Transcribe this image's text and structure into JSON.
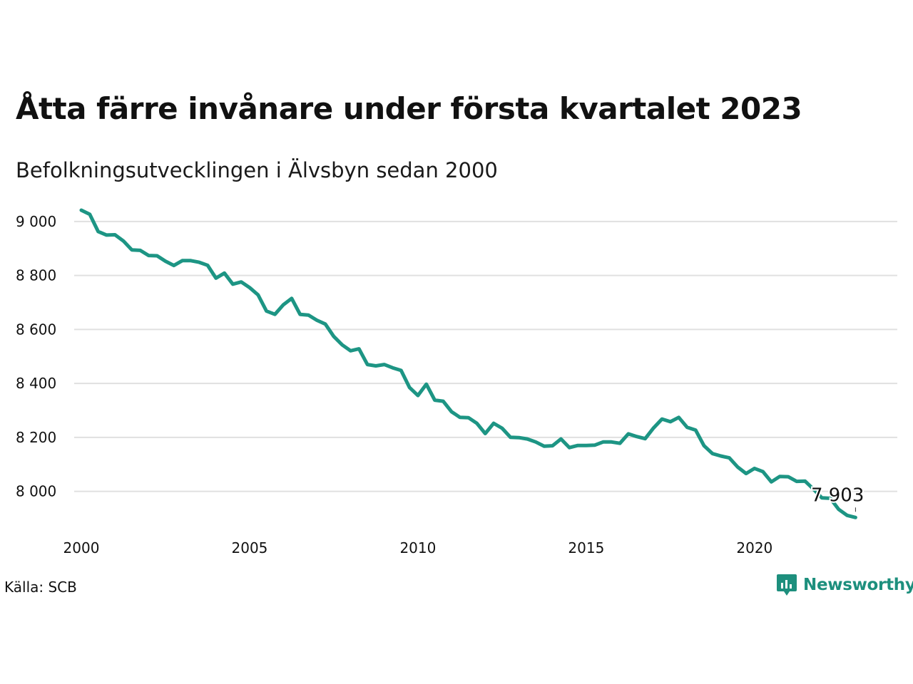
{
  "title": "Åtta färre invånare under första kvartalet 2023",
  "subtitle": "Befolkningsutvecklingen i Älvsbyn sedan 2000",
  "source": "Källa: SCB",
  "brand": {
    "name": "Newsworthy",
    "icon": "chart-bubble-icon",
    "color": "#1d8f7d"
  },
  "chart_data": {
    "type": "line",
    "ylim": [
      7880,
      9050
    ],
    "xlim": [
      2000.0,
      2023.5
    ],
    "yticks": [
      8000,
      8200,
      8400,
      8600,
      8800,
      9000
    ],
    "ytick_labels": [
      "8 000",
      "8 200",
      "8 400",
      "8 600",
      "8 800",
      "9 000"
    ],
    "xticks": [
      2000,
      2005,
      2010,
      2015,
      2020
    ],
    "xtick_labels": [
      "2000",
      "2005",
      "2010",
      "2015",
      "2020"
    ],
    "grid": true,
    "line_color": "#1d9584",
    "last_label": "7 903",
    "series": [
      {
        "x": [
          "2000Q1",
          "2000Q2",
          "2000Q3",
          "2000Q4",
          "2001Q1",
          "2001Q2",
          "2001Q3",
          "2001Q4",
          "2002Q1",
          "2002Q2",
          "2002Q3",
          "2002Q4",
          "2003Q1",
          "2003Q2",
          "2003Q3",
          "2003Q4",
          "2004Q1",
          "2004Q2",
          "2004Q3",
          "2004Q4",
          "2005Q1",
          "2005Q2",
          "2005Q3",
          "2005Q4",
          "2006Q1",
          "2006Q2",
          "2006Q3",
          "2006Q4",
          "2007Q1",
          "2007Q2",
          "2007Q3",
          "2007Q4",
          "2008Q1",
          "2008Q2",
          "2008Q3",
          "2008Q4",
          "2009Q1",
          "2009Q2",
          "2009Q3",
          "2009Q4",
          "2010Q1",
          "2010Q2",
          "2010Q3",
          "2010Q4",
          "2011Q1",
          "2011Q2",
          "2011Q3",
          "2011Q4",
          "2012Q1",
          "2012Q2",
          "2012Q3",
          "2012Q4",
          "2013Q1",
          "2013Q2",
          "2013Q3",
          "2013Q4",
          "2014Q1",
          "2014Q2",
          "2014Q3",
          "2014Q4",
          "2015Q1",
          "2015Q2",
          "2015Q3",
          "2015Q4",
          "2016Q1",
          "2016Q2",
          "2016Q3",
          "2016Q4",
          "2017Q1",
          "2017Q2",
          "2017Q3",
          "2017Q4",
          "2018Q1",
          "2018Q2",
          "2018Q3",
          "2018Q4",
          "2019Q1",
          "2019Q2",
          "2019Q3",
          "2019Q4",
          "2020Q1",
          "2020Q2",
          "2020Q3",
          "2020Q4",
          "2021Q1",
          "2021Q2",
          "2021Q3",
          "2021Q4",
          "2022Q1",
          "2022Q2",
          "2022Q3",
          "2022Q4",
          "2023Q1"
        ],
        "values": [
          9042,
          9027,
          8963,
          8950,
          8951,
          8928,
          8895,
          8893,
          8874,
          8873,
          8853,
          8837,
          8855,
          8855,
          8849,
          8838,
          8790,
          8809,
          8768,
          8776,
          8755,
          8728,
          8668,
          8656,
          8691,
          8715,
          8656,
          8653,
          8634,
          8620,
          8574,
          8543,
          8521,
          8528,
          8470,
          8465,
          8470,
          8458,
          8448,
          8385,
          8355,
          8397,
          8338,
          8334,
          8295,
          8274,
          8273,
          8252,
          8214,
          8252,
          8234,
          8200,
          8199,
          8194,
          8183,
          8167,
          8169,
          8194,
          8162,
          8170,
          8170,
          8171,
          8183,
          8183,
          8178,
          8213,
          8203,
          8195,
          8235,
          8268,
          8258,
          8274,
          8237,
          8227,
          8169,
          8140,
          8131,
          8124,
          8090,
          8066,
          8085,
          8073,
          8035,
          8055,
          8054,
          8037,
          8038,
          8008,
          7976,
          7974,
          7933,
          7911,
          7903
        ]
      }
    ]
  }
}
